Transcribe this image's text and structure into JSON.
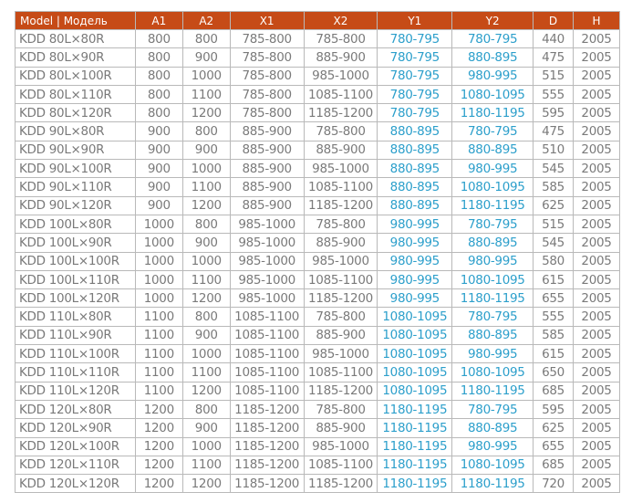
{
  "columns": [
    "Model | Модель",
    "A1",
    "A2",
    "X1",
    "X2",
    "Y1",
    "Y2",
    "D",
    "H"
  ],
  "colors": {
    "header_bg": "#c64b17",
    "header_text": "#ffffff",
    "cell_text": "#7a7a7a",
    "highlight_text": "#2c9fcb"
  },
  "rows": [
    [
      "KDD 80L×80R",
      "800",
      "800",
      "785-800",
      "785-800",
      "780-795",
      "780-795",
      "440",
      "2005"
    ],
    [
      "KDD 80L×90R",
      "800",
      "900",
      "785-800",
      "885-900",
      "780-795",
      "880-895",
      "475",
      "2005"
    ],
    [
      "KDD 80L×100R",
      "800",
      "1000",
      "785-800",
      "985-1000",
      "780-795",
      "980-995",
      "515",
      "2005"
    ],
    [
      "KDD 80L×110R",
      "800",
      "1100",
      "785-800",
      "1085-1100",
      "780-795",
      "1080-1095",
      "555",
      "2005"
    ],
    [
      "KDD 80L×120R",
      "800",
      "1200",
      "785-800",
      "1185-1200",
      "780-795",
      "1180-1195",
      "595",
      "2005"
    ],
    [
      "KDD 90L×80R",
      "900",
      "800",
      "885-900",
      "785-800",
      "880-895",
      "780-795",
      "475",
      "2005"
    ],
    [
      "KDD 90L×90R",
      "900",
      "900",
      "885-900",
      "885-900",
      "880-895",
      "880-895",
      "510",
      "2005"
    ],
    [
      "KDD 90L×100R",
      "900",
      "1000",
      "885-900",
      "985-1000",
      "880-895",
      "980-995",
      "545",
      "2005"
    ],
    [
      "KDD 90L×110R",
      "900",
      "1100",
      "885-900",
      "1085-1100",
      "880-895",
      "1080-1095",
      "585",
      "2005"
    ],
    [
      "KDD 90L×120R",
      "900",
      "1200",
      "885-900",
      "1185-1200",
      "880-895",
      "1180-1195",
      "625",
      "2005"
    ],
    [
      "KDD 100L×80R",
      "1000",
      "800",
      "985-1000",
      "785-800",
      "980-995",
      "780-795",
      "515",
      "2005"
    ],
    [
      "KDD 100L×90R",
      "1000",
      "900",
      "985-1000",
      "885-900",
      "980-995",
      "880-895",
      "545",
      "2005"
    ],
    [
      "KDD 100L×100R",
      "1000",
      "1000",
      "985-1000",
      "985-1000",
      "980-995",
      "980-995",
      "580",
      "2005"
    ],
    [
      "KDD 100L×110R",
      "1000",
      "1100",
      "985-1000",
      "1085-1100",
      "980-995",
      "1080-1095",
      "615",
      "2005"
    ],
    [
      "KDD 100L×120R",
      "1000",
      "1200",
      "985-1000",
      "1185-1200",
      "980-995",
      "1180-1195",
      "655",
      "2005"
    ],
    [
      "KDD 110L×80R",
      "1100",
      "800",
      "1085-1100",
      "785-800",
      "1080-1095",
      "780-795",
      "555",
      "2005"
    ],
    [
      "KDD 110L×90R",
      "1100",
      "900",
      "1085-1100",
      "885-900",
      "1080-1095",
      "880-895",
      "585",
      "2005"
    ],
    [
      "KDD 110L×100R",
      "1100",
      "1000",
      "1085-1100",
      "985-1000",
      "1080-1095",
      "980-995",
      "615",
      "2005"
    ],
    [
      "KDD 110L×110R",
      "1100",
      "1100",
      "1085-1100",
      "1085-1100",
      "1080-1095",
      "1080-1095",
      "650",
      "2005"
    ],
    [
      "KDD 110L×120R",
      "1100",
      "1200",
      "1085-1100",
      "1185-1200",
      "1080-1095",
      "1180-1195",
      "685",
      "2005"
    ],
    [
      "KDD 120L×80R",
      "1200",
      "800",
      "1185-1200",
      "785-800",
      "1180-1195",
      "780-795",
      "595",
      "2005"
    ],
    [
      "KDD 120L×90R",
      "1200",
      "900",
      "1185-1200",
      "885-900",
      "1180-1195",
      "880-895",
      "625",
      "2005"
    ],
    [
      "KDD 120L×100R",
      "1200",
      "1000",
      "1185-1200",
      "985-1000",
      "1180-1195",
      "980-995",
      "655",
      "2005"
    ],
    [
      "KDD 120L×110R",
      "1200",
      "1100",
      "1185-1200",
      "1085-1100",
      "1180-1195",
      "1080-1095",
      "685",
      "2005"
    ],
    [
      "KDD 120L×120R",
      "1200",
      "1200",
      "1185-1200",
      "1185-1200",
      "1180-1195",
      "1180-1195",
      "720",
      "2005"
    ]
  ]
}
